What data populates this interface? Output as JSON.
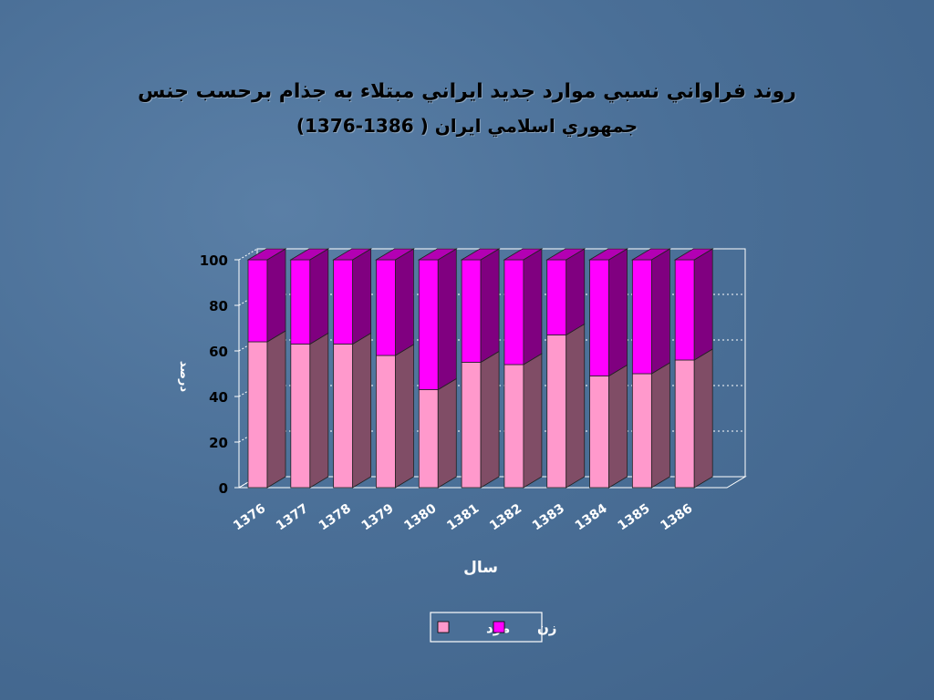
{
  "chart_data": {
    "type": "bar",
    "stacked": true,
    "title": "روند فراواني نسبي موارد جديد ايراني مبتلاء به جذام برحسب جنس",
    "subtitle": "جمهوري اسلامي ايران ( 1386-1376)",
    "xlabel": "سال",
    "ylabel": "درصد",
    "ylim": [
      0,
      100
    ],
    "yticks": [
      "0",
      "20",
      "40",
      "60",
      "80",
      "100"
    ],
    "categories": [
      "1376",
      "1377",
      "1378",
      "1379",
      "1380",
      "1381",
      "1382",
      "1383",
      "1384",
      "1385",
      "1386"
    ],
    "series": [
      {
        "name": "مرد",
        "color": "#ff99cc",
        "values": [
          64,
          63,
          63,
          58,
          43,
          55,
          54,
          67,
          49,
          50,
          56
        ]
      },
      {
        "name": "زن",
        "color": "#ff00ff",
        "values": [
          36,
          37,
          37,
          42,
          57,
          45,
          46,
          33,
          51,
          50,
          44
        ]
      }
    ],
    "grid": true,
    "legend": "bottom"
  }
}
